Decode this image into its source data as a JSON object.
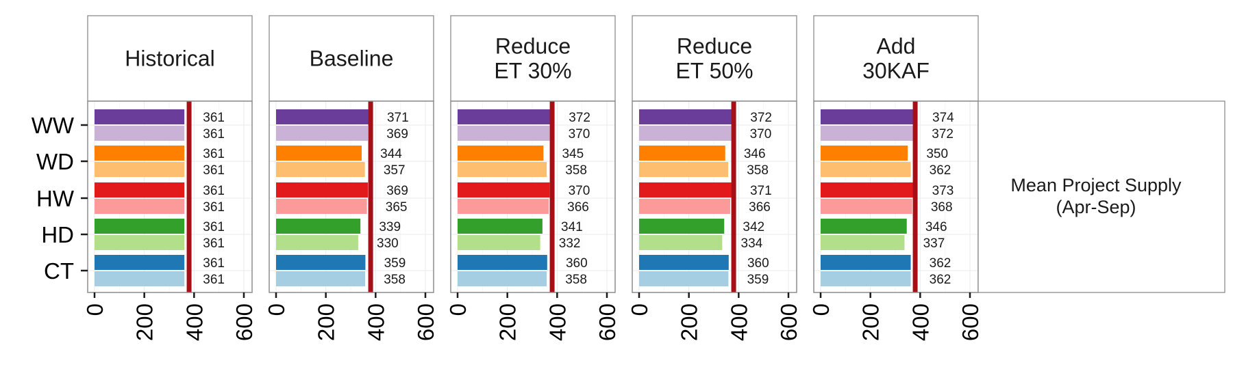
{
  "chart_data": {
    "type": "bar",
    "orientation": "horizontal",
    "facets": [
      "Historical",
      "Baseline",
      "Reduce ET 30%",
      "Reduce ET 50%",
      "Add 30KAF"
    ],
    "facet_titles": [
      [
        "Historical"
      ],
      [
        "Baseline"
      ],
      [
        "Reduce",
        "ET 30%"
      ],
      [
        "Reduce",
        "ET 50%"
      ],
      [
        "Add",
        "30KAF"
      ]
    ],
    "categories": [
      "WW",
      "WD",
      "HW",
      "HD",
      "CT"
    ],
    "series": [
      {
        "values": [
          [
            361,
            371,
            372,
            372,
            374
          ],
          [
            361,
            344,
            345,
            346,
            350
          ],
          [
            361,
            369,
            370,
            371,
            373
          ],
          [
            361,
            339,
            341,
            342,
            346
          ],
          [
            361,
            359,
            360,
            360,
            362
          ]
        ]
      },
      {
        "values": [
          [
            361,
            369,
            370,
            370,
            372
          ],
          [
            361,
            357,
            358,
            358,
            362
          ],
          [
            361,
            365,
            366,
            366,
            368
          ],
          [
            361,
            330,
            332,
            334,
            337
          ],
          [
            361,
            358,
            358,
            359,
            362
          ]
        ]
      }
    ],
    "colors": {
      "dark": [
        "#6a3d9a",
        "#ff7f00",
        "#e31a1c",
        "#33a02c",
        "#1f78b4"
      ],
      "light": [
        "#cab2d6",
        "#fdbf6f",
        "#fb9a99",
        "#b2df8a",
        "#a6cee3"
      ]
    },
    "reference_line": {
      "value": 380,
      "color": "#a50f15"
    },
    "xlim": [
      0,
      600
    ],
    "xticks": [
      0,
      200,
      400,
      600
    ],
    "side_label": [
      "Mean Project Supply",
      "(Apr-Sep)"
    ],
    "grid": true
  }
}
